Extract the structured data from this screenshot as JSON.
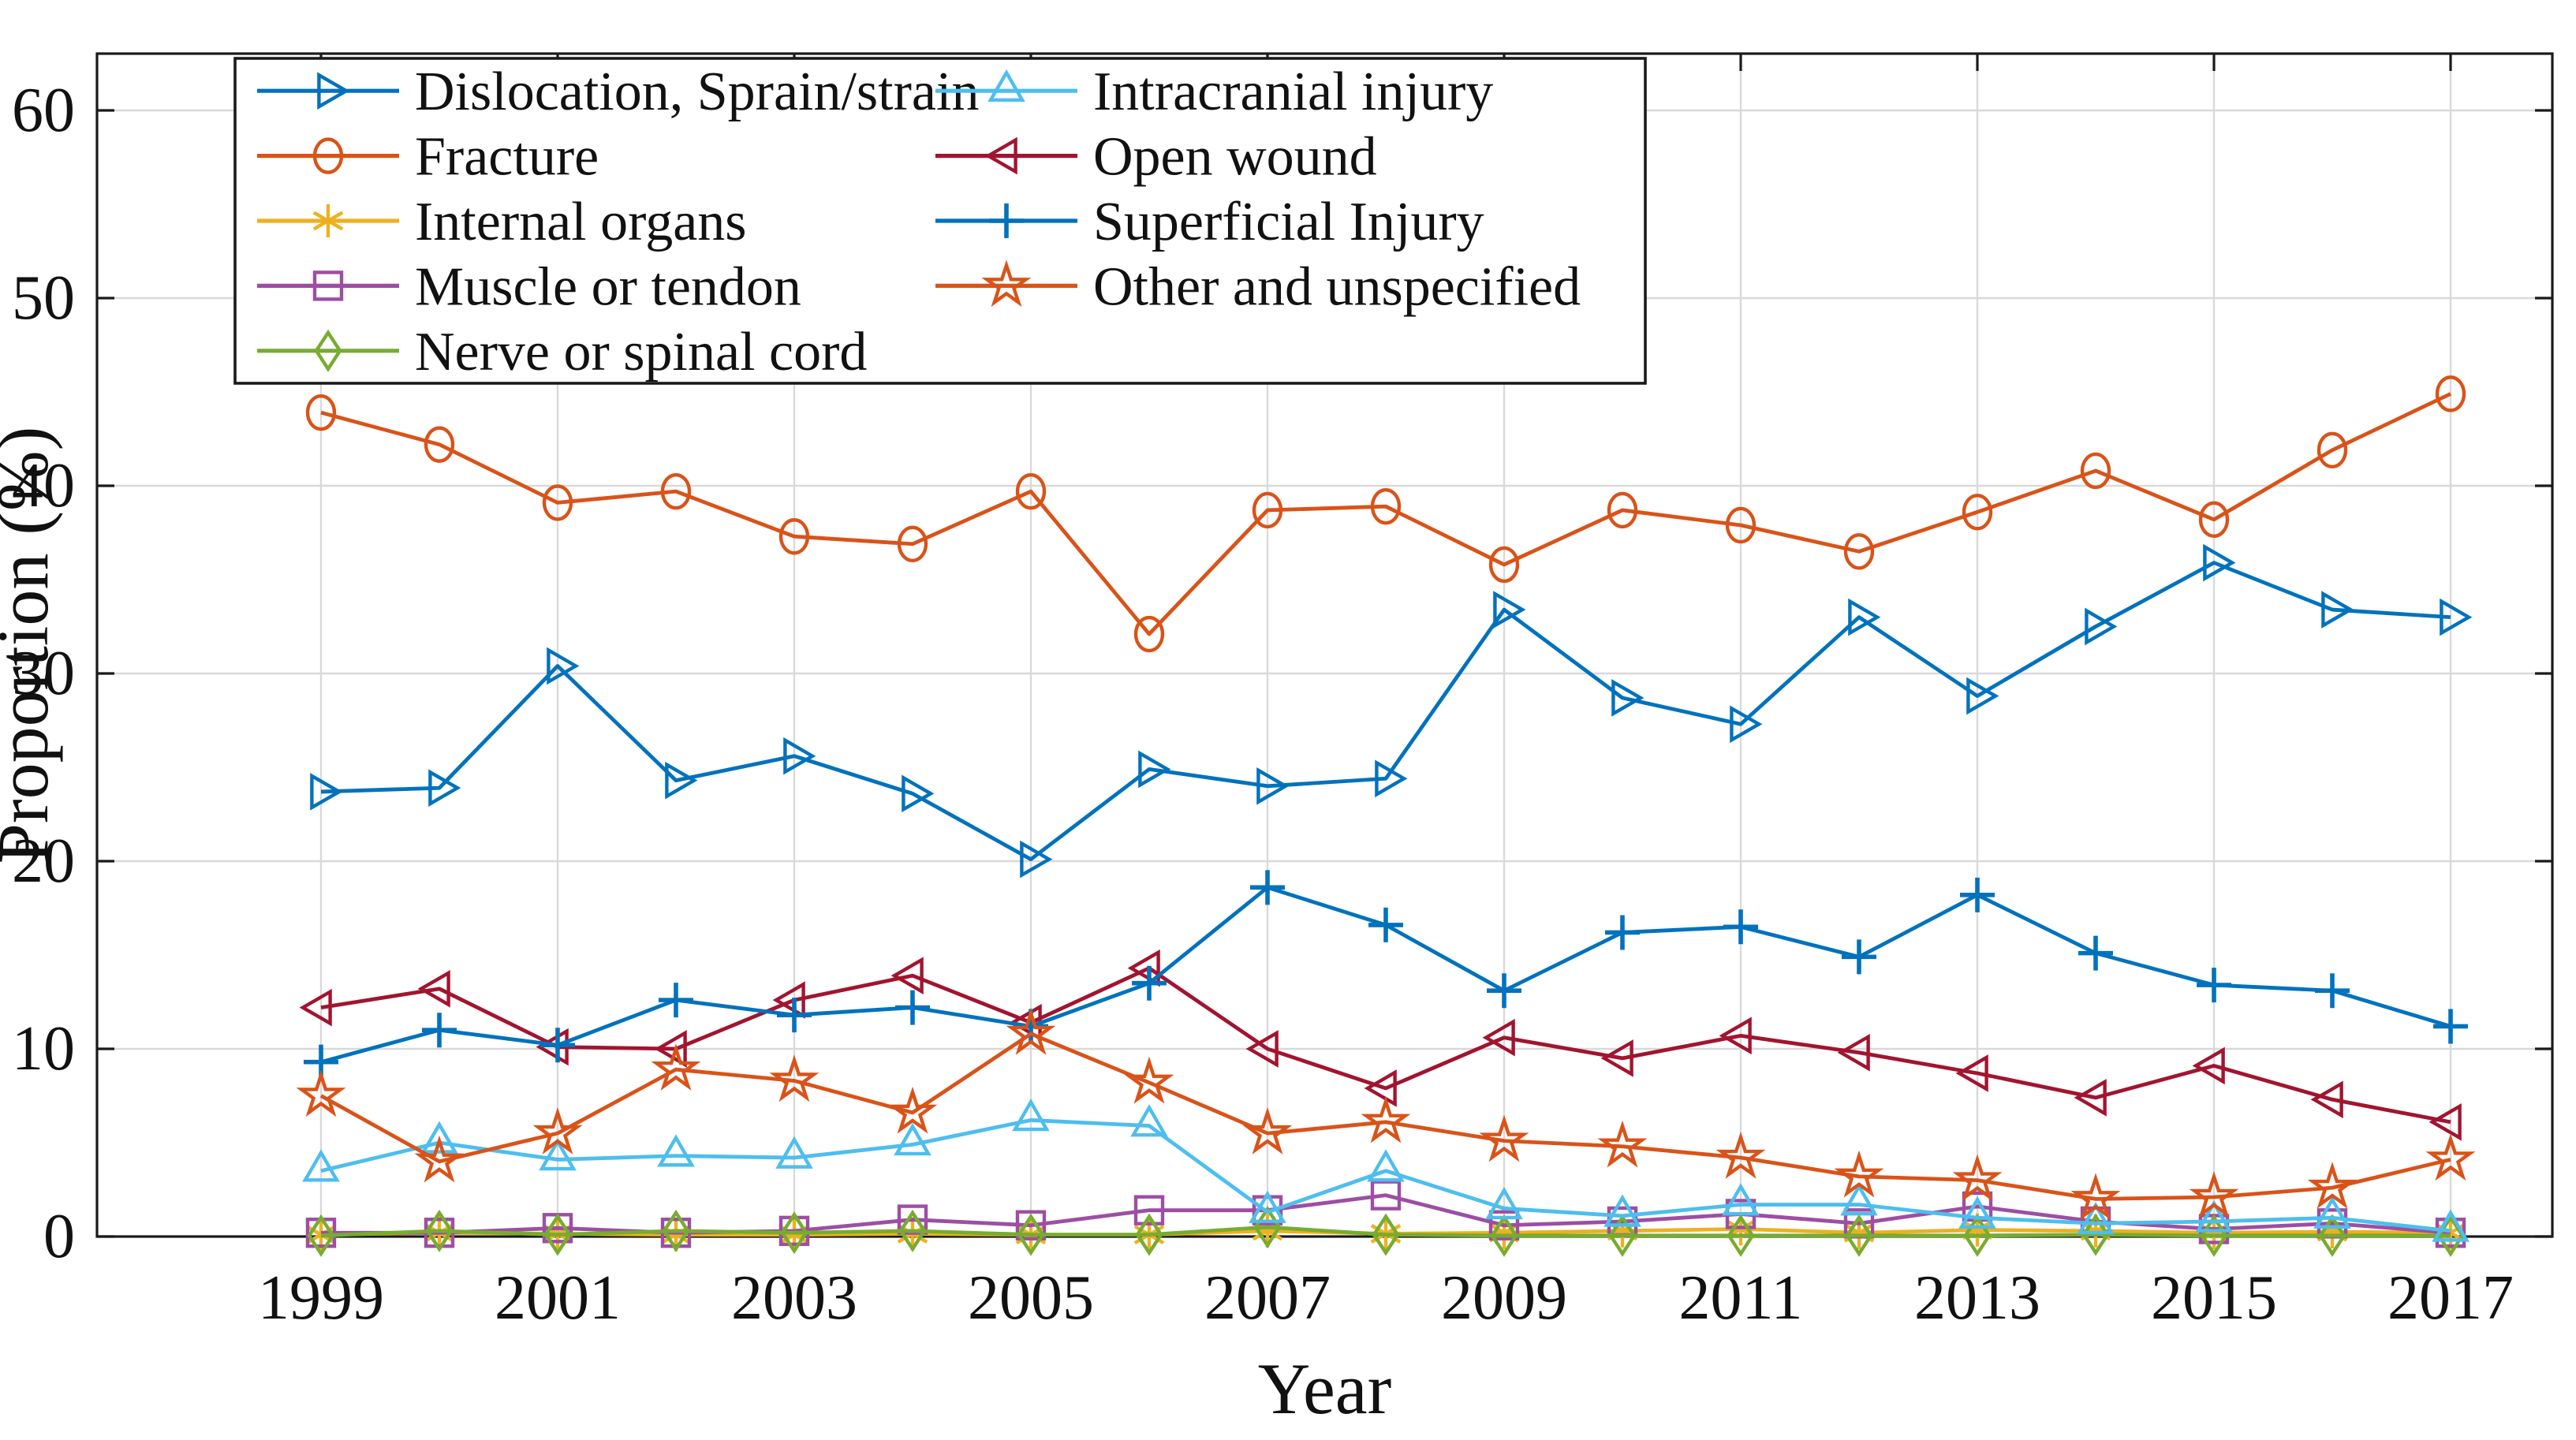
{
  "chart_data": {
    "type": "line",
    "title": "",
    "xlabel": "Year",
    "ylabel": "Proportion (%)",
    "grid": true,
    "legend_position": "top-left",
    "legend_columns": 2,
    "axis_color": "#1a1a1a",
    "grid_color": "#d9d9d9",
    "x": [
      1999,
      2000,
      2001,
      2002,
      2003,
      2004,
      2005,
      2006,
      2007,
      2008,
      2009,
      2010,
      2011,
      2012,
      2013,
      2014,
      2015,
      2016,
      2017
    ],
    "xticks": [
      1999,
      2001,
      2003,
      2005,
      2007,
      2009,
      2011,
      2013,
      2015,
      2017
    ],
    "yticks": [
      0,
      10,
      20,
      30,
      40,
      50,
      60
    ],
    "xlim": [
      1997.1,
      2017.9
    ],
    "ylim": [
      0,
      63
    ],
    "series": [
      {
        "name": "Dislocation, Sprain/strain",
        "marker": "triangle-right",
        "color": "#0072BD",
        "values": [
          23.7,
          23.9,
          30.4,
          24.3,
          25.6,
          23.6,
          20.1,
          24.9,
          24.0,
          24.4,
          33.4,
          28.7,
          27.3,
          33.0,
          28.8,
          32.5,
          35.9,
          33.4,
          33.0
        ]
      },
      {
        "name": "Fracture",
        "marker": "circle",
        "color": "#D95319",
        "values": [
          43.9,
          42.2,
          39.1,
          39.7,
          37.3,
          36.9,
          39.7,
          32.1,
          38.7,
          38.9,
          35.8,
          38.7,
          37.9,
          36.5,
          38.6,
          40.8,
          38.2,
          41.9,
          44.9
        ]
      },
      {
        "name": "Internal organs",
        "marker": "asterisk",
        "color": "#EDB120",
        "values": [
          0.1,
          0.2,
          0.15,
          0.1,
          0.1,
          0.15,
          0.1,
          0.1,
          0.3,
          0.15,
          0.2,
          0.3,
          0.4,
          0.2,
          0.35,
          0.3,
          0.2,
          0.25,
          0.2
        ]
      },
      {
        "name": "Muscle or tendon",
        "marker": "square",
        "color": "#9D4EA3",
        "values": [
          0.2,
          0.2,
          0.45,
          0.2,
          0.3,
          0.9,
          0.6,
          1.4,
          1.4,
          2.2,
          0.6,
          0.8,
          1.2,
          0.7,
          1.6,
          0.8,
          0.4,
          0.7,
          0.2
        ]
      },
      {
        "name": "Nerve or spinal cord",
        "marker": "diamond",
        "color": "#77AC30",
        "values": [
          0.05,
          0.3,
          0.1,
          0.3,
          0.2,
          0.3,
          0.1,
          0.1,
          0.5,
          0.1,
          0.05,
          0.05,
          0.05,
          0.05,
          0.05,
          0.1,
          0.05,
          0.05,
          0.05
        ]
      },
      {
        "name": "Intracranial injury",
        "marker": "triangle-up",
        "color": "#4DBEEE",
        "values": [
          3.5,
          5.0,
          4.1,
          4.3,
          4.2,
          4.9,
          6.2,
          5.9,
          1.3,
          3.5,
          1.5,
          1.1,
          1.7,
          1.7,
          1.0,
          0.7,
          0.8,
          1.0,
          0.3
        ]
      },
      {
        "name": "Open wound",
        "marker": "triangle-left",
        "color": "#A2142F",
        "values": [
          12.2,
          13.2,
          10.1,
          10.0,
          12.6,
          13.9,
          11.4,
          14.3,
          10.0,
          7.9,
          10.6,
          9.5,
          10.7,
          9.8,
          8.7,
          7.4,
          9.1,
          7.3,
          6.1
        ]
      },
      {
        "name": "Superficial Injury",
        "marker": "plus",
        "color": "#0072BD",
        "values": [
          9.3,
          11.0,
          10.2,
          12.6,
          11.8,
          12.2,
          11.2,
          13.5,
          18.6,
          16.6,
          13.1,
          16.2,
          16.5,
          14.9,
          18.2,
          15.1,
          13.4,
          13.1,
          11.2
        ]
      },
      {
        "name": "Other and unspecified",
        "marker": "pentagram",
        "color": "#D95319",
        "values": [
          7.5,
          4.0,
          5.5,
          8.9,
          8.3,
          6.6,
          10.8,
          8.2,
          5.5,
          6.1,
          5.1,
          4.8,
          4.2,
          3.2,
          3.0,
          2.0,
          2.1,
          2.6,
          4.1
        ]
      }
    ],
    "legend_column_order": [
      [
        0,
        1,
        2,
        3,
        4
      ],
      [
        5,
        6,
        7,
        8
      ]
    ]
  }
}
